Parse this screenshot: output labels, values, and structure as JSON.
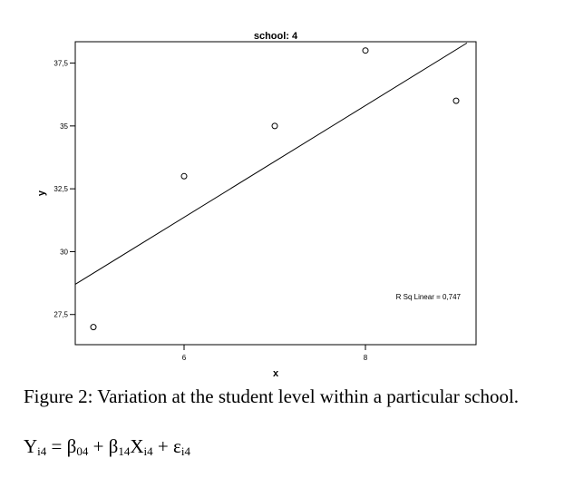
{
  "chart_data": {
    "type": "scatter",
    "title": "school: 4",
    "xlabel": "x",
    "ylabel": "y",
    "x_ticks": [
      {
        "value": 6,
        "label": "6"
      },
      {
        "value": 8,
        "label": "8"
      }
    ],
    "y_ticks": [
      {
        "value": 27.5,
        "label": "27,5"
      },
      {
        "value": 30,
        "label": "30"
      },
      {
        "value": 32.5,
        "label": "32,5"
      },
      {
        "value": 35,
        "label": "35"
      },
      {
        "value": 37.5,
        "label": "37,5"
      }
    ],
    "xlim": [
      4.8,
      9.22
    ],
    "ylim": [
      26.3,
      38.35
    ],
    "points": [
      {
        "x": 5,
        "y": 27
      },
      {
        "x": 6,
        "y": 33
      },
      {
        "x": 7,
        "y": 35
      },
      {
        "x": 8,
        "y": 38
      },
      {
        "x": 9,
        "y": 36
      }
    ],
    "fit_line": {
      "x": [
        4.8,
        9.12
      ],
      "y": [
        28.7,
        38.3
      ]
    },
    "annotation": "R Sq Linear = 0,747",
    "grid": false,
    "legend": "none"
  },
  "caption": "Figure 2: Variation at the student level within a particular school.",
  "equation": {
    "y": "Y",
    "y_sub": "i4",
    "eq": " = ",
    "b0": "β",
    "b0_sub": "04",
    "plus1": " + ",
    "b1": "β",
    "b1_sub": "14",
    "x": "X",
    "x_sub": "i4",
    "plus2": " + ",
    "e": "ε",
    "e_sub": "i4"
  }
}
